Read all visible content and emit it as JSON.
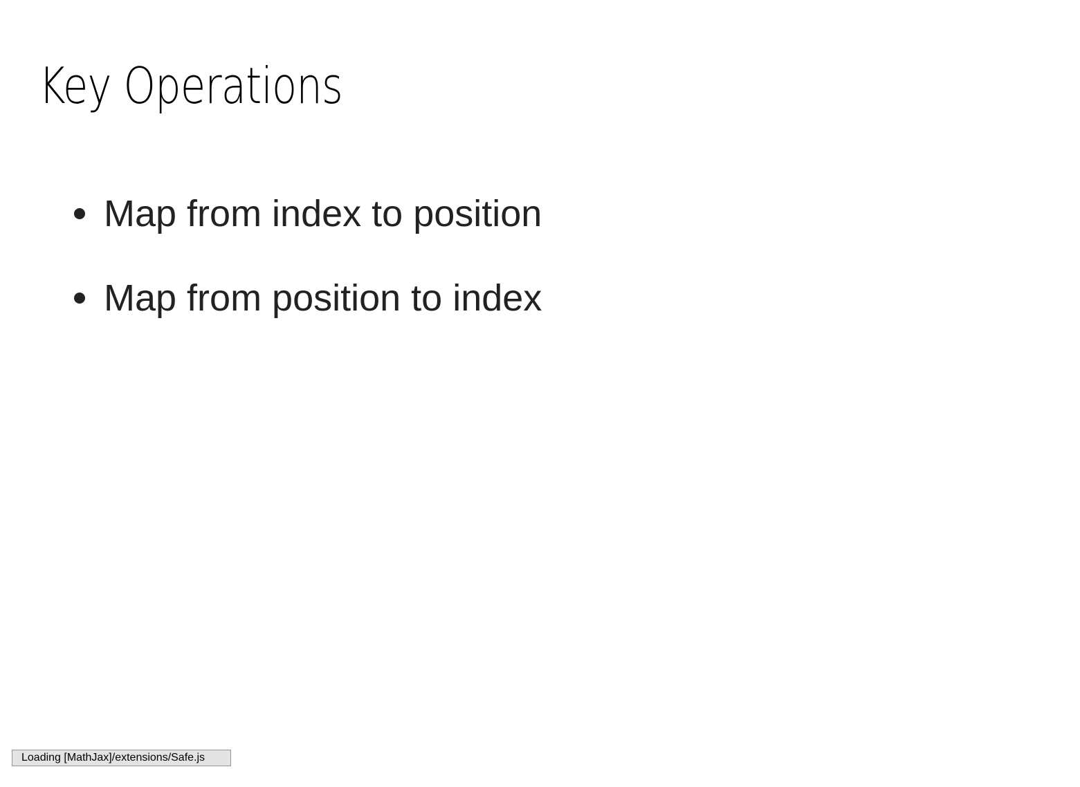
{
  "slide": {
    "title": "Key Operations",
    "bullets": [
      "Map from index to position",
      "Map from position to index"
    ]
  },
  "status": {
    "message": "Loading [MathJax]/extensions/Safe.js"
  },
  "colors": {
    "background": "#ffffff",
    "title_text": "#000000",
    "body_text": "#222222",
    "status_background": "#e4e4e4",
    "status_border": "#959595"
  }
}
